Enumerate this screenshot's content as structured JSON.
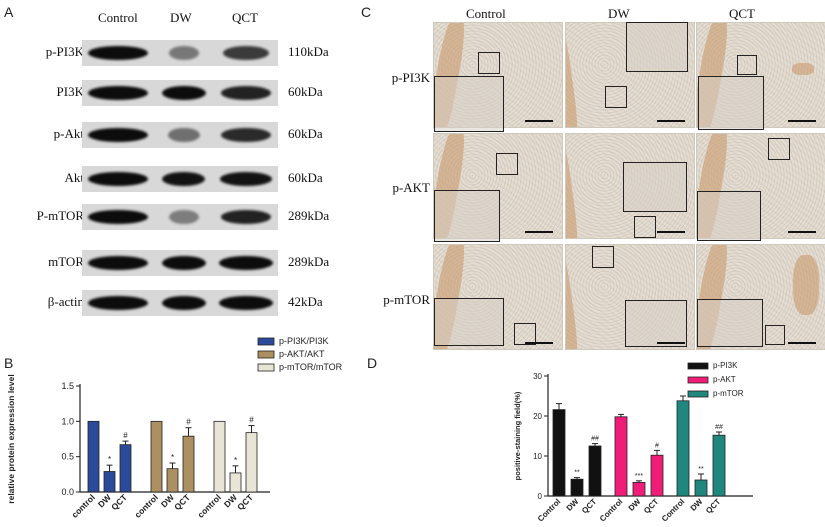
{
  "panels": {
    "a": "A",
    "b": "B",
    "c": "C",
    "d": "D"
  },
  "western_blot": {
    "columns": [
      "Control",
      "DW",
      "QCT"
    ],
    "rows": [
      {
        "label": "p-PI3K",
        "kda": "110kDa",
        "intensity": [
          1.0,
          0.3,
          0.7
        ]
      },
      {
        "label": "PI3K",
        "kda": "60kDa",
        "intensity": [
          1.0,
          1.0,
          0.85
        ]
      },
      {
        "label": "p-Akt",
        "kda": "60kDa",
        "intensity": [
          1.0,
          0.35,
          0.8
        ]
      },
      {
        "label": "Akt",
        "kda": "60kDa",
        "intensity": [
          1.0,
          0.95,
          0.95
        ]
      },
      {
        "label": "P-mTOR",
        "kda": "289kDa",
        "intensity": [
          1.0,
          0.25,
          0.85
        ]
      },
      {
        "label": "mTOR",
        "kda": "289kDa",
        "intensity": [
          1.0,
          1.0,
          1.0
        ]
      },
      {
        "label": "β-actin",
        "kda": "42kDa",
        "intensity": [
          1.0,
          1.0,
          1.0
        ]
      }
    ]
  },
  "ihc": {
    "columns": [
      "Control",
      "DW",
      "QCT"
    ],
    "rows": [
      "p-PI3K",
      "p-AKT",
      "p-mTOR"
    ]
  },
  "chart_data": [
    {
      "type": "bar",
      "ylabel": "relative protein expression level",
      "ylim": [
        0,
        1.5
      ],
      "yticks": [
        "0.0",
        "0.5",
        "1.0",
        "1.5"
      ],
      "categories": [
        "control",
        "DW",
        "QCT"
      ],
      "legend_position": "top-right",
      "series": [
        {
          "name": "p-PI3K/PI3K",
          "color": "#2c4a9a",
          "values": [
            1.0,
            0.29,
            0.67
          ],
          "errors": [
            0,
            0.09,
            0.05
          ],
          "sig": [
            "",
            "*",
            "#"
          ]
        },
        {
          "name": "p-AKT/AKT",
          "color": "#ad9061",
          "values": [
            1.0,
            0.33,
            0.79
          ],
          "errors": [
            0,
            0.08,
            0.12
          ],
          "sig": [
            "",
            "*",
            "#"
          ]
        },
        {
          "name": "p-mTOR/mTOR",
          "color": "#e8e5d6",
          "values": [
            1.0,
            0.27,
            0.84
          ],
          "errors": [
            0,
            0.1,
            0.1
          ],
          "sig": [
            "",
            "*",
            "#"
          ]
        }
      ]
    },
    {
      "type": "bar",
      "ylabel": "positive-staining field(%)",
      "ylim": [
        0,
        30
      ],
      "yticks": [
        "0",
        "10",
        "20",
        "30"
      ],
      "categories": [
        "Control",
        "DW",
        "QCT"
      ],
      "legend_position": "top-right",
      "series": [
        {
          "name": "p-PI3K",
          "color": "#111111",
          "values": [
            21.6,
            4.2,
            12.5
          ],
          "errors": [
            1.5,
            0.4,
            0.6
          ],
          "sig": [
            "",
            "**",
            "##"
          ]
        },
        {
          "name": "p-AKT",
          "color": "#f01c78",
          "values": [
            19.8,
            3.4,
            10.2
          ],
          "errors": [
            0.6,
            0.4,
            1.2
          ],
          "sig": [
            "",
            "***",
            "#"
          ]
        },
        {
          "name": "p-mTOR",
          "color": "#20877f",
          "values": [
            23.8,
            4.0,
            15.2
          ],
          "errors": [
            1.2,
            1.5,
            0.8
          ],
          "sig": [
            "",
            "**",
            "##"
          ]
        }
      ]
    }
  ]
}
